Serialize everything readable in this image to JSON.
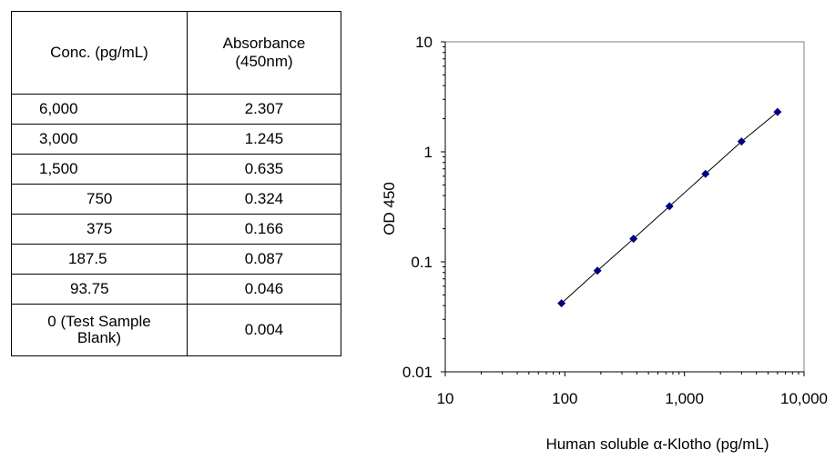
{
  "table": {
    "headers": [
      "Conc. (pg/mL)",
      "Absorbance\n(450nm)"
    ],
    "rows": [
      {
        "conc": "6,000",
        "abs": "2.307"
      },
      {
        "conc": "3,000",
        "abs": "1.245"
      },
      {
        "conc": "1,500",
        "abs": "0.635"
      },
      {
        "conc": "750",
        "abs": "0.324"
      },
      {
        "conc": "375",
        "abs": "0.166"
      },
      {
        "conc": "187.5",
        "abs": "0.087"
      },
      {
        "conc": "93.75",
        "abs": "0.046"
      },
      {
        "conc": "0 (Test Sample\nBlank)",
        "abs": "0.004"
      }
    ]
  },
  "chart_data": {
    "type": "scatter",
    "x_scale": "log",
    "y_scale": "log",
    "xlabel": "Human soluble α-Klotho (pg/mL)",
    "ylabel": "OD 450",
    "xlim": [
      10,
      10000
    ],
    "ylim": [
      0.01,
      10
    ],
    "x_ticks": [
      "10",
      "100",
      "1,000",
      "10,000"
    ],
    "y_ticks": [
      "10",
      "1",
      "0.1",
      "0.01"
    ],
    "grid": false,
    "marker_color": "#00007f",
    "line_color": "#000000",
    "series": [
      {
        "x": [
          93.75,
          187.5,
          375,
          750,
          1500,
          3000,
          6000
        ],
        "y": [
          0.042,
          0.083,
          0.162,
          0.32,
          0.631,
          1.241,
          2.303
        ]
      }
    ]
  }
}
